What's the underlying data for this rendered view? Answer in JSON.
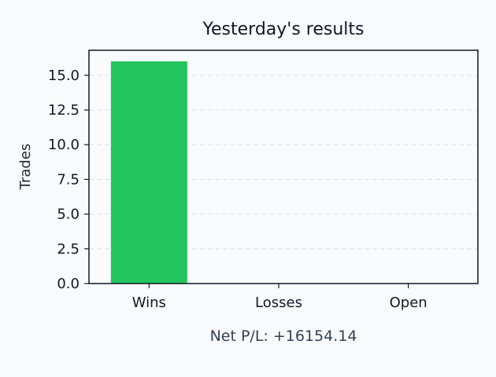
{
  "chart_data": {
    "type": "bar",
    "title": "Yesterday's results",
    "categories": [
      "Wins",
      "Losses",
      "Open"
    ],
    "values": [
      16,
      0,
      0
    ],
    "xlabel": "",
    "ylabel": "Trades",
    "ylim": [
      0,
      16.8
    ],
    "yticks": [
      "0.0",
      "2.5",
      "5.0",
      "7.5",
      "10.0",
      "12.5",
      "15.0"
    ],
    "grid": "horizontal dashed",
    "legend": "none",
    "bar_color": "#22c55e",
    "annotation": "Net P/L: +16154.14"
  }
}
